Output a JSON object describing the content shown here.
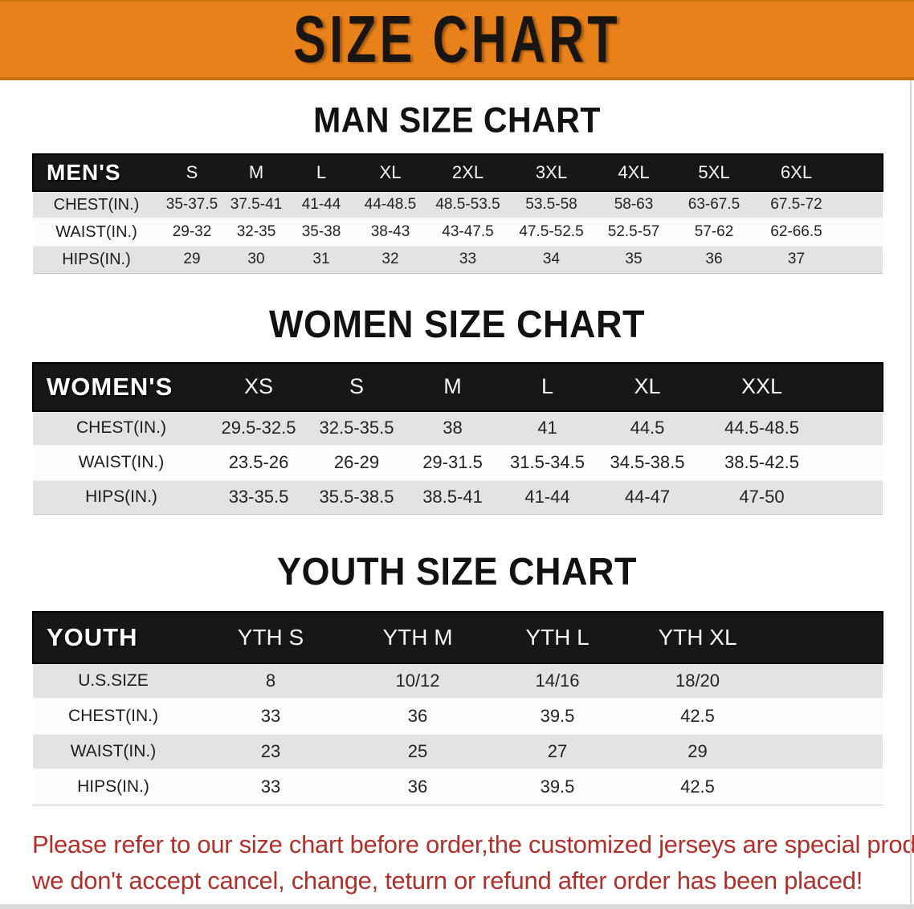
{
  "banner": {
    "title": "SIZE CHART",
    "bg_color": "#e8811a",
    "text_color": "#181512"
  },
  "sections": [
    {
      "heading": "MAN SIZE CHART",
      "header_label": "MEN'S",
      "columns": [
        "S",
        "M",
        "L",
        "XL",
        "2XL",
        "3XL",
        "4XL",
        "5XL",
        "6XL"
      ],
      "rows": [
        {
          "label": "CHEST(IN.)",
          "values": [
            "35-37.5",
            "37.5-41",
            "41-44",
            "44-48.5",
            "48.5-53.5",
            "53.5-58",
            "58-63",
            "63-67.5",
            "67.5-72"
          ]
        },
        {
          "label": "WAIST(IN.)",
          "values": [
            "29-32",
            "32-35",
            "35-38",
            "38-43",
            "43-47.5",
            "47.5-52.5",
            "52.5-57",
            "57-62",
            "62-66.5"
          ]
        },
        {
          "label": "HIPS(IN.)",
          "values": [
            "29",
            "30",
            "31",
            "32",
            "33",
            "34",
            "35",
            "36",
            "37"
          ]
        }
      ]
    },
    {
      "heading": "WOMEN SIZE CHART",
      "header_label": "WOMEN'S",
      "columns": [
        "XS",
        "S",
        "M",
        "L",
        "XL",
        "XXL"
      ],
      "rows": [
        {
          "label": "CHEST(IN.)",
          "values": [
            "29.5-32.5",
            "32.5-35.5",
            "38",
            "41",
            "44.5",
            "44.5-48.5"
          ]
        },
        {
          "label": "WAIST(IN.)",
          "values": [
            "23.5-26",
            "26-29",
            "29-31.5",
            "31.5-34.5",
            "34.5-38.5",
            "38.5-42.5"
          ]
        },
        {
          "label": "HIPS(IN.)",
          "values": [
            "33-35.5",
            "35.5-38.5",
            "38.5-41",
            "41-44",
            "44-47",
            "47-50"
          ]
        }
      ]
    },
    {
      "heading": "YOUTH SIZE CHART",
      "header_label": "YOUTH",
      "columns": [
        "YTH S",
        "YTH M",
        "YTH L",
        "YTH XL"
      ],
      "rows": [
        {
          "label": "U.S.SIZE",
          "values": [
            "8",
            "10/12",
            "14/16",
            "18/20"
          ]
        },
        {
          "label": "CHEST(IN.)",
          "values": [
            "33",
            "36",
            "39.5",
            "42.5"
          ]
        },
        {
          "label": "WAIST(IN.)",
          "values": [
            "23",
            "25",
            "27",
            "29"
          ]
        },
        {
          "label": "HIPS(IN.)",
          "values": [
            "33",
            "36",
            "39.5",
            "42.5"
          ]
        }
      ]
    }
  ],
  "disclaimer": {
    "line1": "Please refer to our size chart before order,the customized jerseys are special products,",
    "line2": "we don't accept cancel, change, teturn or refund after order has been placed!",
    "color": "#b1302b"
  }
}
